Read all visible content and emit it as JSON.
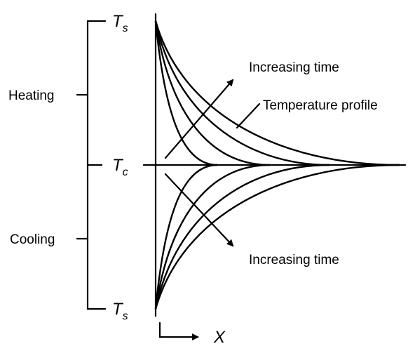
{
  "symbols": {
    "surface_top": {
      "main": "T",
      "sub": "s"
    },
    "center": {
      "main": "T",
      "sub": "c"
    },
    "surface_bottom": {
      "main": "T",
      "sub": "s"
    },
    "x_axis": "X"
  },
  "labels": {
    "heating": "Heating",
    "cooling": "Cooling",
    "increasing_time_top": "Increasing time",
    "temperature_profile": "Temperature profile",
    "increasing_time_bottom": "Increasing time"
  },
  "profiles": {
    "heating_curve_count": 4,
    "cooling_curve_count": 4
  }
}
